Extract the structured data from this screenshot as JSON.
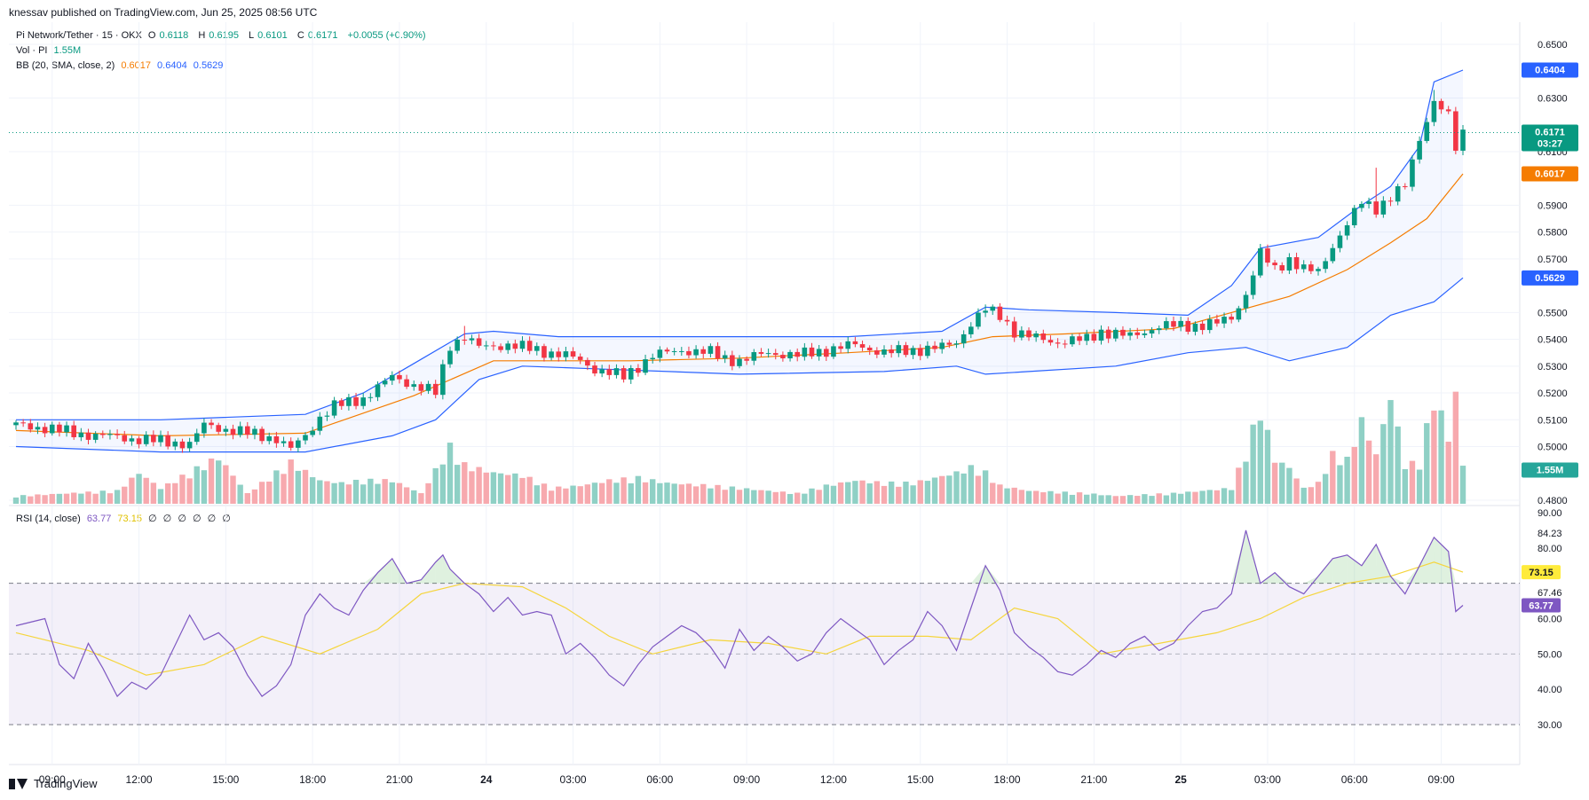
{
  "header": {
    "text": "knessav published on TradingView.com, Jun 25, 2025 08:56 UTC"
  },
  "legend": {
    "symbol": "Pi Network/Tether · 15 · OKX",
    "open_label": "O",
    "open": "0.6118",
    "high_label": "H",
    "high": "0.6195",
    "low_label": "L",
    "low": "0.6101",
    "close_label": "C",
    "close": "0.6171",
    "change": "+0.0055 (+0.90%)",
    "vol_label": "Vol · PI",
    "vol_value": "1.55M",
    "bb_label": "BB (20, SMA, close, 2)",
    "bb_basis": "0.6017",
    "bb_upper": "0.6404",
    "bb_lower": "0.5629",
    "rsi_label": "RSI (14, close)",
    "rsi_value": "63.77",
    "rsi_ma": "73.15",
    "rsi_empty": [
      "∅",
      "∅",
      "∅",
      "∅",
      "∅",
      "∅"
    ]
  },
  "colors": {
    "up": "#089981",
    "down": "#f23645",
    "bb_basis": "#f57c00",
    "bb_band": "#2962ff",
    "rsi": "#7e57c2",
    "rsi_ma": "#f5d53d",
    "current_price": "#089981"
  },
  "price_badges": {
    "upper": "0.6404",
    "current": "0.6171",
    "countdown": "03:27",
    "basis": "0.6017",
    "lower": "0.5629",
    "volume": "1.55M"
  },
  "rsi_badges": {
    "ma": "73.15",
    "rsi": "63.77"
  },
  "footer": {
    "brand": "TradingView"
  },
  "chart_data": {
    "type": "candlestick",
    "price_axis": {
      "range": [
        0.48,
        0.65
      ],
      "ticks": [
        "0.6500",
        "0.6300",
        "0.6100",
        "0.5900",
        "0.5800",
        "0.5700",
        "0.5500",
        "0.5400",
        "0.5300",
        "0.5200",
        "0.5100",
        "0.5000",
        "0.4800"
      ],
      "tick_values": [
        0.65,
        0.63,
        0.61,
        0.59,
        0.58,
        0.57,
        0.55,
        0.54,
        0.53,
        0.52,
        0.51,
        0.5,
        0.48
      ]
    },
    "rsi_axis": {
      "range": [
        30,
        90
      ],
      "ticks": [
        "90.00",
        "84.23",
        "80.00",
        "67.46",
        "60.00",
        "50.00",
        "40.00",
        "30.00"
      ],
      "tick_values": [
        90,
        84.23,
        80,
        67.46,
        60,
        50,
        40,
        30
      ],
      "overbought": 70,
      "middle": 50,
      "oversold": 30
    },
    "time_axis": {
      "ticks": [
        "09:00",
        "12:00",
        "15:00",
        "18:00",
        "21:00",
        "24",
        "03:00",
        "06:00",
        "09:00",
        "12:00",
        "15:00",
        "18:00",
        "21:00",
        "25",
        "03:00",
        "06:00",
        "09:00"
      ],
      "tick_bars": [
        5,
        17,
        29,
        41,
        53,
        65,
        77,
        89,
        101,
        113,
        125,
        137,
        149,
        161,
        173,
        185,
        197
      ],
      "bold_ticks": [
        5,
        13
      ]
    },
    "close_path": [
      [
        0,
        0.508
      ],
      [
        4,
        0.507
      ],
      [
        8,
        0.505
      ],
      [
        12,
        0.504
      ],
      [
        16,
        0.503
      ],
      [
        20,
        0.502
      ],
      [
        24,
        0.501
      ],
      [
        26,
        0.508
      ],
      [
        28,
        0.507
      ],
      [
        32,
        0.505
      ],
      [
        36,
        0.503
      ],
      [
        38,
        0.499
      ],
      [
        40,
        0.504
      ],
      [
        42,
        0.511
      ],
      [
        44,
        0.515
      ],
      [
        48,
        0.518
      ],
      [
        52,
        0.526
      ],
      [
        56,
        0.522
      ],
      [
        58,
        0.52
      ],
      [
        60,
        0.538
      ],
      [
        62,
        0.541
      ],
      [
        64,
        0.537
      ],
      [
        68,
        0.538
      ],
      [
        72,
        0.536
      ],
      [
        76,
        0.534
      ],
      [
        78,
        0.532
      ],
      [
        80,
        0.529
      ],
      [
        84,
        0.526
      ],
      [
        86,
        0.53
      ],
      [
        88,
        0.534
      ],
      [
        92,
        0.536
      ],
      [
        96,
        0.535
      ],
      [
        98,
        0.533
      ],
      [
        100,
        0.532
      ],
      [
        104,
        0.535
      ],
      [
        108,
        0.534
      ],
      [
        112,
        0.536
      ],
      [
        116,
        0.538
      ],
      [
        120,
        0.535
      ],
      [
        124,
        0.536
      ],
      [
        128,
        0.537
      ],
      [
        130,
        0.539
      ],
      [
        132,
        0.546
      ],
      [
        134,
        0.551
      ],
      [
        136,
        0.549
      ],
      [
        138,
        0.543
      ],
      [
        140,
        0.541
      ],
      [
        144,
        0.539
      ],
      [
        148,
        0.54
      ],
      [
        150,
        0.543
      ],
      [
        154,
        0.541
      ],
      [
        158,
        0.545
      ],
      [
        162,
        0.545
      ],
      [
        166,
        0.546
      ],
      [
        168,
        0.548
      ],
      [
        170,
        0.557
      ],
      [
        172,
        0.572
      ],
      [
        174,
        0.566
      ],
      [
        176,
        0.57
      ],
      [
        178,
        0.566
      ],
      [
        180,
        0.565
      ],
      [
        182,
        0.575
      ],
      [
        184,
        0.583
      ],
      [
        186,
        0.591
      ],
      [
        188,
        0.589
      ],
      [
        190,
        0.593
      ],
      [
        192,
        0.597
      ],
      [
        194,
        0.615
      ],
      [
        196,
        0.629
      ],
      [
        198,
        0.623
      ],
      [
        199,
        0.611
      ],
      [
        200,
        0.617
      ]
    ],
    "high_spikes": [
      [
        62,
        0.545
      ],
      [
        134,
        0.553
      ],
      [
        172,
        0.575
      ],
      [
        188,
        0.604
      ],
      [
        196,
        0.633
      ]
    ],
    "bb_basis_path": [
      [
        0,
        0.506
      ],
      [
        20,
        0.504
      ],
      [
        40,
        0.505
      ],
      [
        55,
        0.519
      ],
      [
        66,
        0.532
      ],
      [
        75,
        0.532
      ],
      [
        85,
        0.532
      ],
      [
        100,
        0.533
      ],
      [
        115,
        0.535
      ],
      [
        128,
        0.537
      ],
      [
        135,
        0.541
      ],
      [
        145,
        0.542
      ],
      [
        160,
        0.544
      ],
      [
        168,
        0.55
      ],
      [
        176,
        0.556
      ],
      [
        184,
        0.566
      ],
      [
        190,
        0.576
      ],
      [
        195,
        0.585
      ],
      [
        200,
        0.6017
      ]
    ],
    "bb_upper_path": [
      [
        0,
        0.51
      ],
      [
        20,
        0.51
      ],
      [
        40,
        0.512
      ],
      [
        48,
        0.52
      ],
      [
        55,
        0.531
      ],
      [
        62,
        0.542
      ],
      [
        66,
        0.543
      ],
      [
        75,
        0.541
      ],
      [
        85,
        0.541
      ],
      [
        100,
        0.541
      ],
      [
        115,
        0.541
      ],
      [
        128,
        0.543
      ],
      [
        134,
        0.552
      ],
      [
        140,
        0.551
      ],
      [
        152,
        0.55
      ],
      [
        162,
        0.549
      ],
      [
        168,
        0.56
      ],
      [
        172,
        0.574
      ],
      [
        180,
        0.578
      ],
      [
        186,
        0.59
      ],
      [
        190,
        0.597
      ],
      [
        194,
        0.612
      ],
      [
        196,
        0.636
      ],
      [
        200,
        0.6404
      ]
    ],
    "bb_lower_path": [
      [
        0,
        0.5
      ],
      [
        20,
        0.498
      ],
      [
        40,
        0.498
      ],
      [
        52,
        0.504
      ],
      [
        58,
        0.51
      ],
      [
        64,
        0.525
      ],
      [
        70,
        0.53
      ],
      [
        80,
        0.529
      ],
      [
        100,
        0.527
      ],
      [
        120,
        0.528
      ],
      [
        130,
        0.53
      ],
      [
        134,
        0.527
      ],
      [
        140,
        0.528
      ],
      [
        152,
        0.53
      ],
      [
        162,
        0.535
      ],
      [
        170,
        0.537
      ],
      [
        176,
        0.532
      ],
      [
        184,
        0.537
      ],
      [
        190,
        0.549
      ],
      [
        196,
        0.554
      ],
      [
        200,
        0.5629
      ]
    ],
    "volume_scale_max": 4.4,
    "volume_samples": [
      [
        0,
        0.3
      ],
      [
        14,
        0.5
      ],
      [
        17,
        1.2
      ],
      [
        20,
        0.6
      ],
      [
        26,
        1.5
      ],
      [
        28,
        1.8
      ],
      [
        32,
        0.4
      ],
      [
        38,
        1.6
      ],
      [
        42,
        0.9
      ],
      [
        45,
        0.8
      ],
      [
        48,
        0.9
      ],
      [
        52,
        0.9
      ],
      [
        56,
        0.4
      ],
      [
        60,
        2.2
      ],
      [
        62,
        1.5
      ],
      [
        66,
        1.2
      ],
      [
        70,
        1.1
      ],
      [
        74,
        0.6
      ],
      [
        78,
        0.7
      ],
      [
        82,
        0.9
      ],
      [
        86,
        1.0
      ],
      [
        90,
        0.8
      ],
      [
        96,
        0.7
      ],
      [
        100,
        0.6
      ],
      [
        108,
        0.4
      ],
      [
        112,
        0.7
      ],
      [
        116,
        0.9
      ],
      [
        120,
        0.8
      ],
      [
        124,
        0.8
      ],
      [
        130,
        1.2
      ],
      [
        132,
        1.4
      ],
      [
        134,
        1.2
      ],
      [
        136,
        0.7
      ],
      [
        140,
        0.5
      ],
      [
        148,
        0.4
      ],
      [
        152,
        0.3
      ],
      [
        160,
        0.4
      ],
      [
        168,
        0.6
      ],
      [
        170,
        2.0
      ],
      [
        172,
        3.7
      ],
      [
        174,
        1.7
      ],
      [
        176,
        1.4
      ],
      [
        178,
        0.6
      ],
      [
        180,
        0.8
      ],
      [
        182,
        1.9
      ],
      [
        184,
        1.7
      ],
      [
        186,
        3.2
      ],
      [
        188,
        1.9
      ],
      [
        190,
        4.2
      ],
      [
        192,
        1.5
      ],
      [
        194,
        1.6
      ],
      [
        196,
        4.2
      ],
      [
        198,
        2.6
      ],
      [
        199,
        4.2
      ],
      [
        200,
        1.5
      ]
    ],
    "rsi_path": [
      [
        0,
        58
      ],
      [
        4,
        60
      ],
      [
        6,
        47
      ],
      [
        8,
        43
      ],
      [
        10,
        53
      ],
      [
        12,
        46
      ],
      [
        14,
        38
      ],
      [
        16,
        42
      ],
      [
        18,
        40
      ],
      [
        20,
        44
      ],
      [
        24,
        61
      ],
      [
        26,
        54
      ],
      [
        28,
        56
      ],
      [
        30,
        52
      ],
      [
        32,
        44
      ],
      [
        34,
        38
      ],
      [
        36,
        41
      ],
      [
        38,
        47
      ],
      [
        40,
        61
      ],
      [
        42,
        67
      ],
      [
        44,
        63
      ],
      [
        46,
        61
      ],
      [
        48,
        68
      ],
      [
        50,
        73
      ],
      [
        52,
        77
      ],
      [
        54,
        70
      ],
      [
        56,
        71
      ],
      [
        58,
        76
      ],
      [
        59,
        78
      ],
      [
        60,
        74
      ],
      [
        62,
        70
      ],
      [
        64,
        67
      ],
      [
        66,
        62
      ],
      [
        68,
        66
      ],
      [
        70,
        61
      ],
      [
        72,
        62
      ],
      [
        74,
        61
      ],
      [
        76,
        50
      ],
      [
        78,
        53
      ],
      [
        80,
        49
      ],
      [
        82,
        44
      ],
      [
        84,
        41
      ],
      [
        86,
        47
      ],
      [
        88,
        52
      ],
      [
        90,
        55
      ],
      [
        92,
        58
      ],
      [
        94,
        56
      ],
      [
        96,
        52
      ],
      [
        98,
        46
      ],
      [
        100,
        57
      ],
      [
        102,
        51
      ],
      [
        104,
        55
      ],
      [
        106,
        52
      ],
      [
        108,
        48
      ],
      [
        110,
        50
      ],
      [
        112,
        56
      ],
      [
        114,
        60
      ],
      [
        116,
        57
      ],
      [
        118,
        54
      ],
      [
        120,
        47
      ],
      [
        122,
        51
      ],
      [
        124,
        54
      ],
      [
        126,
        62
      ],
      [
        128,
        58
      ],
      [
        130,
        51
      ],
      [
        132,
        63
      ],
      [
        134,
        75
      ],
      [
        136,
        68
      ],
      [
        138,
        56
      ],
      [
        140,
        52
      ],
      [
        142,
        49
      ],
      [
        144,
        45
      ],
      [
        146,
        44
      ],
      [
        148,
        47
      ],
      [
        150,
        51
      ],
      [
        152,
        49
      ],
      [
        154,
        53
      ],
      [
        156,
        55
      ],
      [
        158,
        51
      ],
      [
        160,
        53
      ],
      [
        162,
        58
      ],
      [
        164,
        62
      ],
      [
        166,
        63
      ],
      [
        168,
        67
      ],
      [
        170,
        85
      ],
      [
        172,
        70
      ],
      [
        174,
        73
      ],
      [
        176,
        69
      ],
      [
        178,
        67
      ],
      [
        180,
        72
      ],
      [
        182,
        77
      ],
      [
        184,
        78
      ],
      [
        186,
        75
      ],
      [
        188,
        81
      ],
      [
        190,
        72
      ],
      [
        192,
        67
      ],
      [
        194,
        75
      ],
      [
        196,
        83
      ],
      [
        198,
        79
      ],
      [
        199,
        62
      ],
      [
        200,
        63.77
      ]
    ],
    "rsi_ma_path": [
      [
        0,
        56
      ],
      [
        10,
        51
      ],
      [
        18,
        44
      ],
      [
        26,
        47
      ],
      [
        34,
        55
      ],
      [
        42,
        50
      ],
      [
        50,
        57
      ],
      [
        56,
        67
      ],
      [
        62,
        70
      ],
      [
        70,
        69
      ],
      [
        76,
        63
      ],
      [
        82,
        55
      ],
      [
        88,
        50
      ],
      [
        96,
        54
      ],
      [
        104,
        53
      ],
      [
        112,
        50
      ],
      [
        118,
        55
      ],
      [
        126,
        55
      ],
      [
        132,
        54
      ],
      [
        138,
        63
      ],
      [
        144,
        60
      ],
      [
        150,
        50
      ],
      [
        158,
        53
      ],
      [
        166,
        56
      ],
      [
        172,
        60
      ],
      [
        178,
        66
      ],
      [
        184,
        70
      ],
      [
        190,
        72
      ],
      [
        196,
        76
      ],
      [
        200,
        73.15
      ]
    ]
  }
}
